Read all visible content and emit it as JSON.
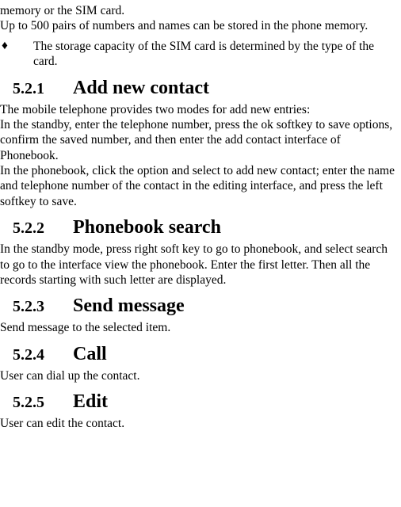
{
  "intro": {
    "l1": "memory or the SIM card.",
    "l2": "Up to 500 pairs of numbers and names can be stored in the phone memory.",
    "bullet_sym": "♦",
    "bullet": "The storage capacity of the SIM card is determined by the type of the card."
  },
  "s1": {
    "num": "5.2.1",
    "title": "Add new contact",
    "p1": "The mobile telephone provides two modes for add new entries:",
    "p2": "In the standby, enter the telephone number, press the ok softkey to save options, confirm the saved number, and then enter the add contact interface of Phonebook.",
    "p3": "In the phonebook, click the option and select to add new contact; enter the name and telephone number of the contact in the editing interface, and press the left softkey to save."
  },
  "s2": {
    "num": "5.2.2",
    "title": "Phonebook search",
    "p1": "In the standby mode, press right soft key to go to phonebook, and select search to go to the interface view the phonebook. Enter the first letter. Then all the records starting with such letter are displayed."
  },
  "s3": {
    "num": "5.2.3",
    "title": "Send message",
    "p1": "Send message to the selected item."
  },
  "s4": {
    "num": "5.2.4",
    "title": "Call",
    "p1": "User can dial up the contact."
  },
  "s5": {
    "num": "5.2.5",
    "title": "Edit",
    "p1": "User can edit the contact."
  }
}
